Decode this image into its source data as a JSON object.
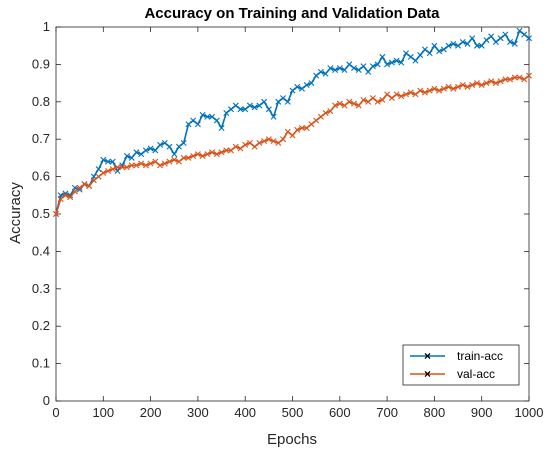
{
  "chart_data": {
    "type": "line",
    "title": "Accuracy on Training and Validation Data",
    "xlabel": "Epochs",
    "ylabel": "Accuracy",
    "xlim": [
      0,
      1000
    ],
    "ylim": [
      0,
      1
    ],
    "xticks": [
      0,
      100,
      200,
      300,
      400,
      500,
      600,
      700,
      800,
      900,
      1000
    ],
    "yticks": [
      0,
      0.1,
      0.2,
      0.3,
      0.4,
      0.5,
      0.6,
      0.7,
      0.8,
      0.9,
      1
    ],
    "grid": false,
    "legend_position": "bottom-right",
    "marker": "x",
    "series": [
      {
        "name": "train-acc",
        "color": "#0072BD",
        "x": [
          0,
          10,
          20,
          30,
          40,
          50,
          60,
          70,
          80,
          90,
          100,
          110,
          120,
          130,
          140,
          150,
          160,
          170,
          180,
          190,
          200,
          210,
          220,
          230,
          240,
          250,
          260,
          270,
          280,
          290,
          300,
          310,
          320,
          330,
          340,
          350,
          360,
          370,
          380,
          390,
          400,
          410,
          420,
          430,
          440,
          450,
          460,
          470,
          480,
          490,
          500,
          510,
          520,
          530,
          540,
          550,
          560,
          570,
          580,
          590,
          600,
          610,
          620,
          630,
          640,
          650,
          660,
          670,
          680,
          690,
          700,
          710,
          720,
          730,
          740,
          750,
          760,
          770,
          780,
          790,
          800,
          810,
          820,
          830,
          840,
          850,
          860,
          870,
          880,
          890,
          900,
          910,
          920,
          930,
          940,
          950,
          960,
          970,
          980,
          990,
          1000
        ],
        "y": [
          0.5,
          0.55,
          0.555,
          0.55,
          0.57,
          0.565,
          0.58,
          0.575,
          0.6,
          0.62,
          0.645,
          0.64,
          0.64,
          0.615,
          0.63,
          0.655,
          0.65,
          0.665,
          0.66,
          0.67,
          0.675,
          0.67,
          0.685,
          0.69,
          0.68,
          0.66,
          0.68,
          0.69,
          0.74,
          0.75,
          0.74,
          0.765,
          0.76,
          0.76,
          0.75,
          0.73,
          0.77,
          0.78,
          0.79,
          0.78,
          0.78,
          0.79,
          0.785,
          0.79,
          0.8,
          0.78,
          0.76,
          0.8,
          0.81,
          0.8,
          0.83,
          0.84,
          0.835,
          0.845,
          0.85,
          0.87,
          0.88,
          0.875,
          0.89,
          0.885,
          0.89,
          0.885,
          0.9,
          0.89,
          0.885,
          0.895,
          0.88,
          0.895,
          0.9,
          0.92,
          0.9,
          0.905,
          0.91,
          0.905,
          0.93,
          0.92,
          0.91,
          0.925,
          0.94,
          0.93,
          0.95,
          0.935,
          0.94,
          0.95,
          0.955,
          0.95,
          0.96,
          0.955,
          0.97,
          0.95,
          0.95,
          0.965,
          0.975,
          0.96,
          0.97,
          0.98,
          0.96,
          0.955,
          0.99,
          0.98,
          0.97
        ]
      },
      {
        "name": "val-acc",
        "color": "#D95319",
        "x": [
          0,
          10,
          20,
          30,
          40,
          50,
          60,
          70,
          80,
          90,
          100,
          110,
          120,
          130,
          140,
          150,
          160,
          170,
          180,
          190,
          200,
          210,
          220,
          230,
          240,
          250,
          260,
          270,
          280,
          290,
          300,
          310,
          320,
          330,
          340,
          350,
          360,
          370,
          380,
          390,
          400,
          410,
          420,
          430,
          440,
          450,
          460,
          470,
          480,
          490,
          500,
          510,
          520,
          530,
          540,
          550,
          560,
          570,
          580,
          590,
          600,
          610,
          620,
          630,
          640,
          650,
          660,
          670,
          680,
          690,
          700,
          710,
          720,
          730,
          740,
          750,
          760,
          770,
          780,
          790,
          800,
          810,
          820,
          830,
          840,
          850,
          860,
          870,
          880,
          890,
          900,
          910,
          920,
          930,
          940,
          950,
          960,
          970,
          980,
          990,
          1000
        ],
        "y": [
          0.5,
          0.54,
          0.55,
          0.545,
          0.56,
          0.57,
          0.58,
          0.575,
          0.59,
          0.6,
          0.61,
          0.615,
          0.62,
          0.625,
          0.625,
          0.625,
          0.63,
          0.63,
          0.635,
          0.63,
          0.635,
          0.64,
          0.63,
          0.635,
          0.64,
          0.645,
          0.64,
          0.65,
          0.65,
          0.655,
          0.66,
          0.655,
          0.66,
          0.665,
          0.66,
          0.665,
          0.67,
          0.67,
          0.68,
          0.675,
          0.685,
          0.69,
          0.68,
          0.69,
          0.695,
          0.7,
          0.695,
          0.69,
          0.7,
          0.72,
          0.71,
          0.725,
          0.73,
          0.73,
          0.74,
          0.75,
          0.76,
          0.77,
          0.775,
          0.79,
          0.795,
          0.79,
          0.8,
          0.795,
          0.79,
          0.805,
          0.8,
          0.81,
          0.8,
          0.805,
          0.82,
          0.81,
          0.82,
          0.815,
          0.82,
          0.825,
          0.82,
          0.83,
          0.825,
          0.83,
          0.835,
          0.83,
          0.835,
          0.84,
          0.835,
          0.84,
          0.845,
          0.84,
          0.845,
          0.85,
          0.845,
          0.85,
          0.855,
          0.85,
          0.855,
          0.86,
          0.86,
          0.865,
          0.865,
          0.86,
          0.87
        ]
      }
    ]
  }
}
